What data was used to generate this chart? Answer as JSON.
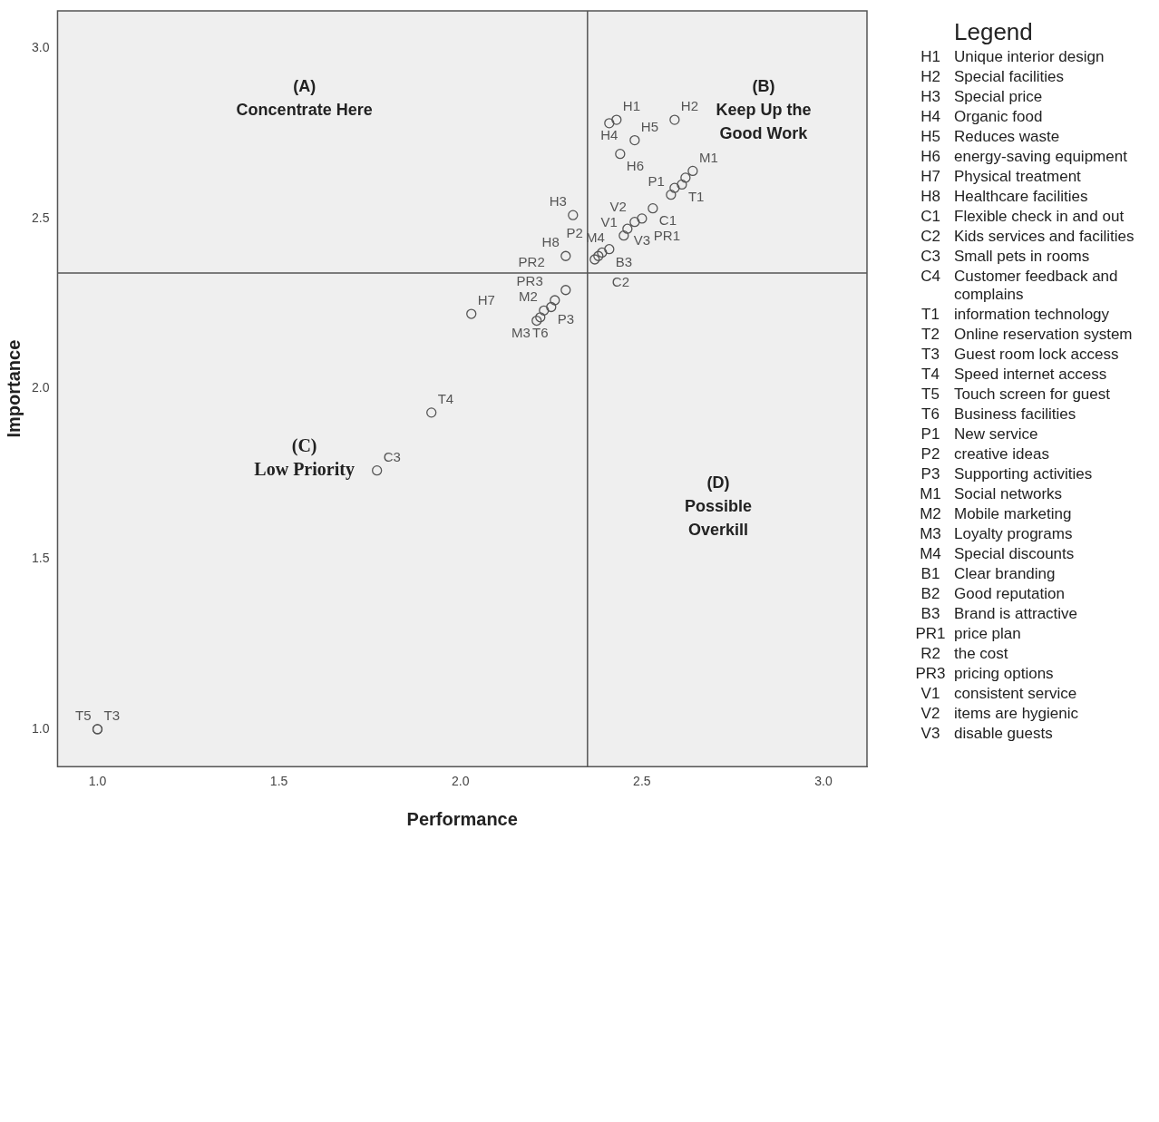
{
  "chart_data": {
    "type": "scatter",
    "xlabel": "Performance",
    "ylabel": "Importance",
    "legend_title": "Legend",
    "xlim": [
      0.89,
      3.12
    ],
    "ylim": [
      0.89,
      3.11
    ],
    "xticks": [
      {
        "value": 1,
        "label": "1.0"
      },
      1.5,
      {
        "value": 2,
        "label": "2.0"
      },
      2.5,
      {
        "value": 3,
        "label": "3.0"
      }
    ],
    "yticks": [
      {
        "value": 1,
        "label": "1.0"
      },
      1.5,
      {
        "value": 2,
        "label": "2.0"
      },
      2.5,
      {
        "value": 3,
        "label": "3.0"
      }
    ],
    "marker": "circle",
    "series": [
      {
        "color": "#555555",
        "x": [
          2.43,
          2.41,
          2.59,
          2.48,
          2.44,
          2.58,
          2.59,
          2.61,
          2.62,
          2.64,
          2.53,
          2.45,
          2.46,
          2.48,
          2.5,
          2.31,
          2.29,
          2.37,
          2.38,
          2.39,
          2.41,
          2.29,
          2.21,
          2.22,
          2.23,
          2.25,
          2.26,
          2.03,
          1.92,
          1.77,
          1.0,
          1.0
        ],
        "values": [
          2.79,
          2.78,
          2.79,
          2.73,
          2.69,
          2.57,
          2.59,
          2.6,
          2.62,
          2.64,
          2.53,
          2.45,
          2.47,
          2.49,
          2.5,
          2.51,
          2.39,
          2.38,
          2.39,
          2.4,
          2.41,
          2.29,
          2.2,
          2.21,
          2.23,
          2.24,
          2.26,
          2.22,
          1.93,
          1.76,
          1.0,
          1.0
        ],
        "value_labels": [
          "H1",
          "H4",
          "H2",
          "H5",
          "H6",
          "P1",
          null,
          "T1",
          null,
          "M1",
          "C1",
          "V1",
          "V3",
          "V2",
          "PR1",
          "H3",
          "H8",
          "C2",
          "P2",
          "B3",
          "M4",
          "PR2",
          "M3",
          "T6",
          "M2",
          "P3",
          "PR3",
          "H7",
          "T4",
          "C3",
          "T3",
          "T5"
        ]
      }
    ],
    "ref_lines": [
      {
        "axis": "x",
        "value": 2.35,
        "color": "#555555"
      },
      {
        "axis": "y",
        "value": 2.34,
        "color": "#555555"
      }
    ],
    "annotations": [
      "(A)\nConcentrate Here",
      "(B)\nKeep Up the\nGood Work",
      "(C)\nLow Priority",
      "(D)\nPossible\nOverkill",
      "H1 Unique interior design",
      "H2 Special facilities",
      "H3 Special price",
      "H4 Organic food",
      "H5 Reduces waste",
      "H6 energy-saving equipment",
      "H7 Physical treatment",
      "H8 Healthcare facilities",
      "C1 Flexible check in and out",
      "C2 Kids services and facilities",
      "C3 Small pets in rooms",
      "C4 Customer feedback and complains",
      "T1 information technology",
      "T2 Online reservation system",
      "T3 Guest room lock access",
      "T4 Speed internet access",
      "T5 Touch screen for guest",
      "T6 Business facilities",
      "P1 New service",
      "P2 creative ideas",
      "P3 Supporting activities",
      "M1 Social networks",
      "M2 Mobile marketing",
      "M3 Loyalty programs",
      "M4 Special discounts",
      "B1 Clear branding",
      "B2 Good reputation",
      "B3 Brand is attractive",
      "PR1 price plan",
      "R2 the cost",
      "PR3 pricing options",
      "V1 consistent service",
      "V2 items are hygienic",
      "V3 disable guests"
    ]
  }
}
